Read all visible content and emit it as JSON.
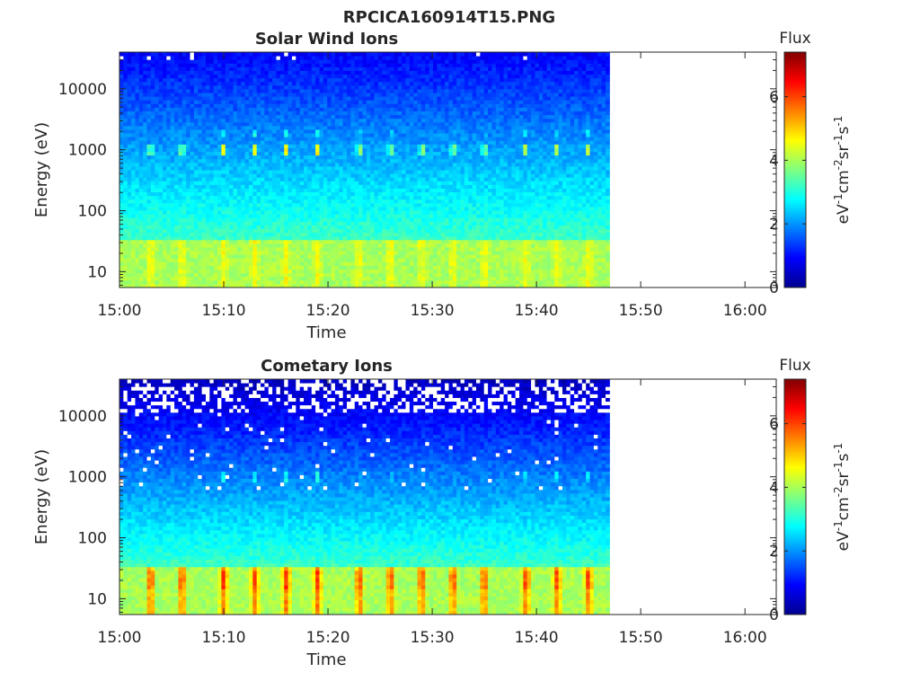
{
  "figure": {
    "title": "RPCICA160914T15.PNG"
  },
  "chart_data": [
    {
      "type": "heatmap",
      "title": "Solar Wind Ions",
      "xlabel": "Time",
      "ylabel": "Energy (eV)",
      "x_ticks": [
        "15:00",
        "15:10",
        "15:20",
        "15:30",
        "15:40",
        "15:50",
        "16:00"
      ],
      "x_range": [
        "15:00",
        "16:03"
      ],
      "data_end": "15:47",
      "y_scale": "log",
      "y_ticks": [
        "10",
        "100",
        "1000",
        "10000"
      ],
      "y_range": [
        5.5,
        40000
      ],
      "colorbar": {
        "label": "Flux",
        "unit_label": "eV-1cm-2sr-1s-1",
        "ticks": [
          "0",
          "2",
          "4",
          "6"
        ],
        "range": [
          0,
          7.4
        ],
        "colormap": "jet"
      },
      "features": {
        "low_energy_band_eV": [
          9,
          35
        ],
        "low_energy_flux_background": 4.0,
        "low_energy_flux_peaks": 4.6,
        "mid_band_eV": [
          850,
          1200
        ],
        "mid_band_flux_peaks": 4.8,
        "upper_band_eV": [
          1700,
          2100
        ],
        "upper_band_flux_peaks": 3.0,
        "high_energy_flux": 0.9,
        "pulse_times": [
          "15:03",
          "15:06",
          "15:10",
          "15:13",
          "15:16",
          "15:19",
          "15:23",
          "15:26",
          "15:29",
          "15:32",
          "15:35",
          "15:39",
          "15:42",
          "15:45"
        ]
      }
    },
    {
      "type": "heatmap",
      "title": "Cometary Ions",
      "xlabel": "Time",
      "ylabel": "Energy (eV)",
      "x_ticks": [
        "15:00",
        "15:10",
        "15:20",
        "15:30",
        "15:40",
        "15:50",
        "16:00"
      ],
      "x_range": [
        "15:00",
        "16:03"
      ],
      "data_end": "15:47",
      "y_scale": "log",
      "y_ticks": [
        "10",
        "100",
        "1000",
        "10000"
      ],
      "y_range": [
        5.5,
        40000
      ],
      "colorbar": {
        "label": "Flux",
        "unit_label": "eV-1cm-2sr-1s-1",
        "ticks": [
          "0",
          "2",
          "4",
          "6"
        ],
        "range": [
          0,
          7.4
        ],
        "colormap": "jet"
      },
      "features": {
        "low_energy_band_eV": [
          9,
          35
        ],
        "low_energy_flux_background": 4.0,
        "low_energy_flux_peaks": 5.6,
        "mid_band_eV": [
          850,
          1200
        ],
        "mid_band_flux_peaks": 2.9,
        "high_energy_flux": 0.4,
        "missing_data_above_eV": 12000,
        "pulse_times": [
          "15:03",
          "15:06",
          "15:10",
          "15:13",
          "15:16",
          "15:19",
          "15:23",
          "15:26",
          "15:29",
          "15:32",
          "15:35",
          "15:39",
          "15:42",
          "15:45"
        ]
      }
    }
  ]
}
